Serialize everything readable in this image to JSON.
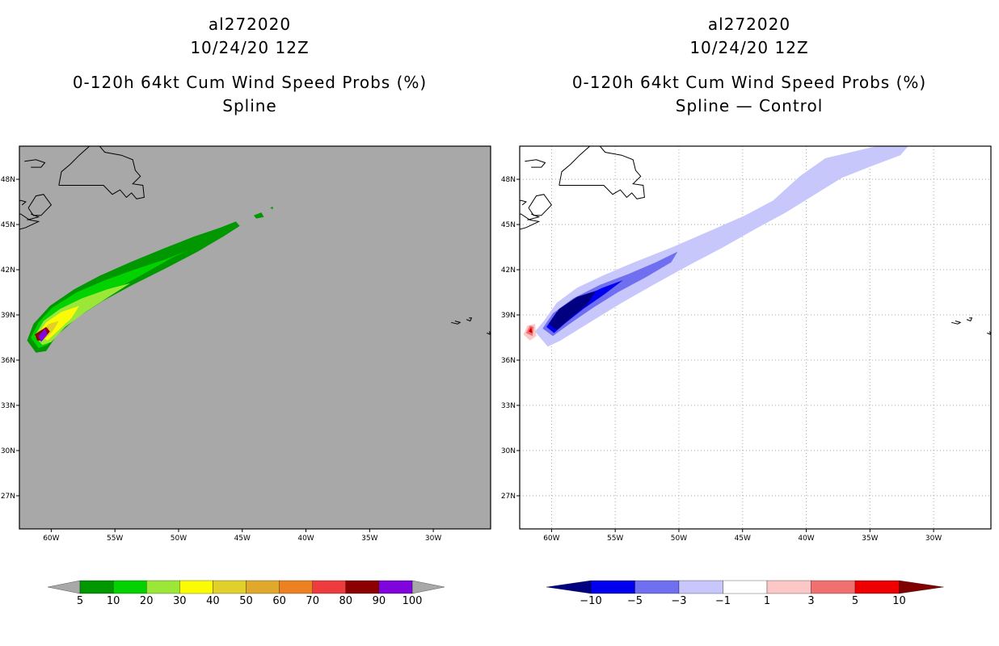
{
  "chart_data": [
    {
      "type": "heatmap",
      "storm_id": "al272020",
      "date": "10/24/20 12Z",
      "title": "0-120h 64kt Cum Wind Speed Probs (%)",
      "subtitle": "Spline",
      "background": "#a8a8a8",
      "xlim": [
        -62.5,
        -25.5
      ],
      "ylim": [
        24.8,
        50.2
      ],
      "x_ticks": [
        "60W",
        "55W",
        "50W",
        "45W",
        "40W",
        "35W",
        "30W"
      ],
      "x_tick_values": [
        -60,
        -55,
        -50,
        -45,
        -40,
        -35,
        -30
      ],
      "y_ticks": [
        "48N",
        "45N",
        "42N",
        "39N",
        "36N",
        "33N",
        "30N",
        "27N"
      ],
      "y_tick_values": [
        48,
        45,
        42,
        39,
        36,
        33,
        30,
        27
      ],
      "gridlines": false,
      "colorbar": {
        "labels": [
          "5",
          "10",
          "20",
          "30",
          "40",
          "50",
          "60",
          "70",
          "80",
          "90",
          "100"
        ],
        "colors": [
          "#019700",
          "#01d200",
          "#9be738",
          "#fbfb04",
          "#e1d02a",
          "#e0a92c",
          "#ec8121",
          "#ee3c3e",
          "#8c0000",
          "#7f05dc"
        ]
      },
      "contours": [
        {
          "level": 5,
          "color": "#019700"
        },
        {
          "level": 10,
          "color": "#01d200"
        },
        {
          "level": 20,
          "color": "#9be738"
        },
        {
          "level": 30,
          "color": "#fbfb04"
        },
        {
          "level": 40,
          "color": "#e1d02a"
        },
        {
          "level": 60,
          "color": "#ec8121"
        },
        {
          "level": 80,
          "color": "#8c0000"
        },
        {
          "level": 90,
          "color": "#7f05dc"
        }
      ]
    },
    {
      "type": "heatmap",
      "storm_id": "al272020",
      "date": "10/24/20 12Z",
      "title": "0-120h 64kt Cum Wind Speed Probs (%)",
      "subtitle": "Spline — Control",
      "background": "#ffffff",
      "xlim": [
        -62.5,
        -25.5
      ],
      "ylim": [
        24.8,
        50.2
      ],
      "x_ticks": [
        "60W",
        "55W",
        "50W",
        "45W",
        "40W",
        "35W",
        "30W"
      ],
      "x_tick_values": [
        -60,
        -55,
        -50,
        -45,
        -40,
        -35,
        -30
      ],
      "y_ticks": [
        "48N",
        "45N",
        "42N",
        "39N",
        "36N",
        "33N",
        "30N",
        "27N"
      ],
      "y_tick_values": [
        48,
        45,
        42,
        39,
        36,
        33,
        30,
        27
      ],
      "gridlines": true,
      "colorbar": {
        "labels": [
          "−10",
          "−5",
          "−3",
          "−1",
          "1",
          "3",
          "5",
          "10"
        ],
        "colors": [
          "#000081",
          "#0000ef",
          "#6f6ff0",
          "#c7c7fc",
          "#ffffff",
          "#fbc7c7",
          "#f06f6f",
          "#ef0000",
          "#810000"
        ]
      },
      "contours": [
        {
          "level": -1,
          "color": "#c7c7fc"
        },
        {
          "level": -3,
          "color": "#6f6ff0"
        },
        {
          "level": -5,
          "color": "#0000ef"
        },
        {
          "level": -10,
          "color": "#000081"
        },
        {
          "level": 1,
          "color": "#fbc7c7"
        },
        {
          "level": 3,
          "color": "#f06f6f"
        },
        {
          "level": 5,
          "color": "#ef0000"
        },
        {
          "level": 10,
          "color": "#810000"
        }
      ]
    }
  ]
}
